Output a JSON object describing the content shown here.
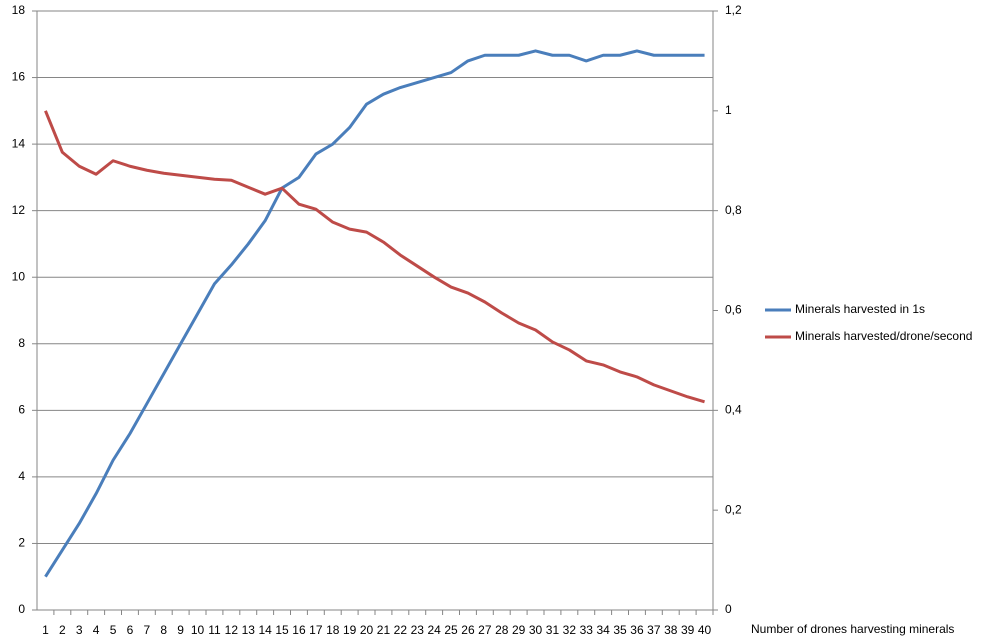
{
  "chart_data": {
    "type": "line",
    "x_label": "Number of drones harvesting minerals",
    "categories": [
      1,
      2,
      3,
      4,
      5,
      6,
      7,
      8,
      9,
      10,
      11,
      12,
      13,
      14,
      15,
      16,
      17,
      18,
      19,
      20,
      21,
      22,
      23,
      24,
      25,
      26,
      27,
      28,
      29,
      30,
      31,
      32,
      33,
      34,
      35,
      36,
      37,
      38,
      39,
      40
    ],
    "series": [
      {
        "name": "Minerals harvested in 1s",
        "color": "#4a7ebb",
        "axis": "y",
        "values": [
          1.0,
          1.8,
          2.6,
          3.5,
          4.5,
          5.3,
          6.2,
          7.1,
          8.0,
          8.9,
          9.8,
          10.37,
          11.0,
          11.7,
          12.68,
          13.0,
          13.7,
          14.0,
          14.5,
          15.2,
          15.5,
          15.7,
          15.85,
          16.0,
          16.15,
          16.5,
          16.67,
          16.67,
          16.67,
          16.8,
          16.67,
          16.67,
          16.5,
          16.67,
          16.67,
          16.8,
          16.67,
          16.67,
          16.67,
          16.67
        ]
      },
      {
        "name": "Minerals harvested/drone/second",
        "color": "#be4b48",
        "axis": "y2",
        "values": [
          1.0,
          0.917,
          0.889,
          0.873,
          0.9,
          0.889,
          0.881,
          0.875,
          0.871,
          0.867,
          0.863,
          0.861,
          0.847,
          0.833,
          0.845,
          0.813,
          0.803,
          0.777,
          0.763,
          0.757,
          0.737,
          0.711,
          0.689,
          0.667,
          0.647,
          0.635,
          0.617,
          0.595,
          0.575,
          0.561,
          0.537,
          0.521,
          0.499,
          0.491,
          0.477,
          0.467,
          0.451,
          0.439,
          0.427,
          0.417
        ]
      }
    ],
    "ylim": [
      0,
      18
    ],
    "yticks": [
      0,
      2,
      4,
      6,
      8,
      10,
      12,
      14,
      16,
      18
    ],
    "y2lim": [
      0,
      1.2
    ],
    "y2ticks": [
      0,
      {
        "value": 0.2,
        "label": "0,2"
      },
      {
        "value": 0.4,
        "label": "0,4"
      },
      {
        "value": 0.6,
        "label": "0,6"
      },
      {
        "value": 0.8,
        "label": "0,8"
      },
      1,
      {
        "value": 1.2,
        "label": "1,2"
      }
    ],
    "grid": true,
    "legend": "right"
  }
}
